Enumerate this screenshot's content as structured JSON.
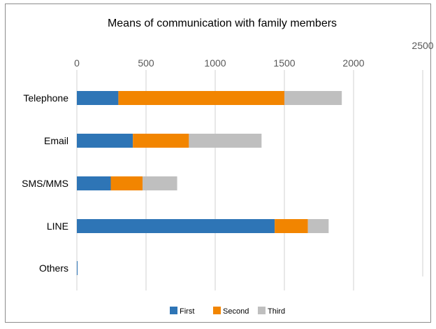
{
  "chart_data": {
    "type": "bar",
    "orientation": "horizontal",
    "stacked": true,
    "title": "Means of communication with family members",
    "categories": [
      "Telephone",
      "Email",
      "SMS/MMS",
      "LINE",
      "Others"
    ],
    "series": [
      {
        "name": "First",
        "values": [
          300,
          405,
          245,
          1430,
          3
        ],
        "color": "#2e75b6"
      },
      {
        "name": "Second",
        "values": [
          1200,
          405,
          230,
          240,
          0
        ],
        "color": "#f28500"
      },
      {
        "name": "Third",
        "values": [
          415,
          525,
          250,
          150,
          0
        ],
        "color": "#bfbfbf"
      }
    ],
    "xlim": [
      0,
      2500
    ],
    "xticks": [
      "0",
      "500",
      "1000",
      "1500",
      "2000",
      "2500"
    ],
    "grid": true,
    "legend": "bottom"
  }
}
